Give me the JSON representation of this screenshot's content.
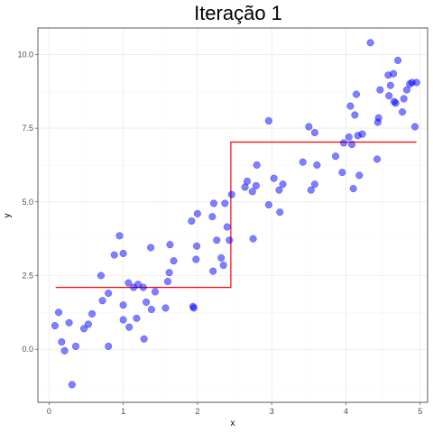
{
  "chart_data": {
    "type": "scatter",
    "title": "Iteração 1",
    "xlabel": "x",
    "ylabel": "y",
    "xlim": [
      -0.15,
      5.1
    ],
    "ylim": [
      -1.8,
      10.9
    ],
    "x_ticks": [
      0,
      1,
      2,
      3,
      4,
      5
    ],
    "x_tick_labels": [
      "0",
      "1",
      "2",
      "3",
      "4",
      "5"
    ],
    "y_ticks": [
      0,
      2.5,
      5,
      7.5,
      10
    ],
    "y_tick_labels": [
      "0.0",
      "2.5",
      "5.0",
      "7.5",
      "10.0"
    ],
    "grid": true,
    "point_color": "#0000ff",
    "step_color": "#ff0000",
    "points": [
      {
        "x": 0.08,
        "y": 0.8
      },
      {
        "x": 0.13,
        "y": 1.25
      },
      {
        "x": 0.17,
        "y": 0.25
      },
      {
        "x": 0.21,
        "y": -0.05
      },
      {
        "x": 0.27,
        "y": 0.9
      },
      {
        "x": 0.31,
        "y": -1.2
      },
      {
        "x": 0.36,
        "y": 0.1
      },
      {
        "x": 0.47,
        "y": 0.7
      },
      {
        "x": 0.53,
        "y": 0.85
      },
      {
        "x": 0.58,
        "y": 1.2
      },
      {
        "x": 0.7,
        "y": 2.5
      },
      {
        "x": 0.72,
        "y": 1.65
      },
      {
        "x": 0.8,
        "y": 1.9
      },
      {
        "x": 0.8,
        "y": 0.1
      },
      {
        "x": 0.88,
        "y": 3.2
      },
      {
        "x": 0.95,
        "y": 3.85
      },
      {
        "x": 1.0,
        "y": 1.0
      },
      {
        "x": 1.0,
        "y": 1.5
      },
      {
        "x": 1.0,
        "y": 3.25
      },
      {
        "x": 1.07,
        "y": 2.25
      },
      {
        "x": 1.08,
        "y": 0.75
      },
      {
        "x": 1.14,
        "y": 2.1
      },
      {
        "x": 1.18,
        "y": 1.05
      },
      {
        "x": 1.2,
        "y": 2.2
      },
      {
        "x": 1.27,
        "y": 2.1
      },
      {
        "x": 1.28,
        "y": 0.35
      },
      {
        "x": 1.31,
        "y": 1.6
      },
      {
        "x": 1.37,
        "y": 3.45
      },
      {
        "x": 1.38,
        "y": 1.35
      },
      {
        "x": 1.43,
        "y": 1.95
      },
      {
        "x": 1.57,
        "y": 1.4
      },
      {
        "x": 1.6,
        "y": 2.3
      },
      {
        "x": 1.62,
        "y": 2.6
      },
      {
        "x": 1.63,
        "y": 3.55
      },
      {
        "x": 1.68,
        "y": 3.0
      },
      {
        "x": 1.92,
        "y": 4.35
      },
      {
        "x": 1.94,
        "y": 1.45
      },
      {
        "x": 1.95,
        "y": 1.4
      },
      {
        "x": 1.98,
        "y": 3.05
      },
      {
        "x": 1.99,
        "y": 3.5
      },
      {
        "x": 2.0,
        "y": 4.6
      },
      {
        "x": 2.2,
        "y": 4.5
      },
      {
        "x": 2.21,
        "y": 2.65
      },
      {
        "x": 2.22,
        "y": 4.95
      },
      {
        "x": 2.26,
        "y": 3.7
      },
      {
        "x": 2.32,
        "y": 3.1
      },
      {
        "x": 2.35,
        "y": 2.85
      },
      {
        "x": 2.37,
        "y": 4.95
      },
      {
        "x": 2.4,
        "y": 4.15
      },
      {
        "x": 2.43,
        "y": 3.7
      },
      {
        "x": 2.46,
        "y": 5.25
      },
      {
        "x": 2.64,
        "y": 5.5
      },
      {
        "x": 2.67,
        "y": 5.7
      },
      {
        "x": 2.74,
        "y": 5.35
      },
      {
        "x": 2.75,
        "y": 3.75
      },
      {
        "x": 2.79,
        "y": 5.55
      },
      {
        "x": 2.8,
        "y": 6.25
      },
      {
        "x": 2.96,
        "y": 7.75
      },
      {
        "x": 2.96,
        "y": 4.9
      },
      {
        "x": 3.03,
        "y": 5.8
      },
      {
        "x": 3.1,
        "y": 5.4
      },
      {
        "x": 3.11,
        "y": 4.65
      },
      {
        "x": 3.15,
        "y": 5.6
      },
      {
        "x": 3.42,
        "y": 6.35
      },
      {
        "x": 3.5,
        "y": 7.55
      },
      {
        "x": 3.53,
        "y": 5.4
      },
      {
        "x": 3.58,
        "y": 5.6
      },
      {
        "x": 3.58,
        "y": 7.35
      },
      {
        "x": 3.61,
        "y": 6.25
      },
      {
        "x": 3.86,
        "y": 6.55
      },
      {
        "x": 3.95,
        "y": 6.0
      },
      {
        "x": 3.97,
        "y": 7.0
      },
      {
        "x": 4.04,
        "y": 7.2
      },
      {
        "x": 4.06,
        "y": 8.25
      },
      {
        "x": 4.08,
        "y": 6.95
      },
      {
        "x": 4.1,
        "y": 5.45
      },
      {
        "x": 4.12,
        "y": 7.95
      },
      {
        "x": 4.14,
        "y": 8.65
      },
      {
        "x": 4.16,
        "y": 7.25
      },
      {
        "x": 4.18,
        "y": 5.9
      },
      {
        "x": 4.22,
        "y": 7.3
      },
      {
        "x": 4.33,
        "y": 10.4
      },
      {
        "x": 4.42,
        "y": 6.45
      },
      {
        "x": 4.43,
        "y": 7.7
      },
      {
        "x": 4.44,
        "y": 7.85
      },
      {
        "x": 4.46,
        "y": 8.8
      },
      {
        "x": 4.57,
        "y": 9.3
      },
      {
        "x": 4.58,
        "y": 8.6
      },
      {
        "x": 4.6,
        "y": 8.95
      },
      {
        "x": 4.64,
        "y": 9.35
      },
      {
        "x": 4.65,
        "y": 8.4
      },
      {
        "x": 4.67,
        "y": 8.35
      },
      {
        "x": 4.7,
        "y": 9.8
      },
      {
        "x": 4.76,
        "y": 8.05
      },
      {
        "x": 4.78,
        "y": 8.5
      },
      {
        "x": 4.82,
        "y": 8.8
      },
      {
        "x": 4.86,
        "y": 9.0
      },
      {
        "x": 4.89,
        "y": 9.05
      },
      {
        "x": 4.93,
        "y": 7.55
      },
      {
        "x": 4.95,
        "y": 9.05
      }
    ],
    "step_line": [
      {
        "x": 0.09,
        "y": 2.1
      },
      {
        "x": 2.45,
        "y": 2.1
      },
      {
        "x": 2.45,
        "y": 7.03
      },
      {
        "x": 4.95,
        "y": 7.03
      }
    ]
  }
}
